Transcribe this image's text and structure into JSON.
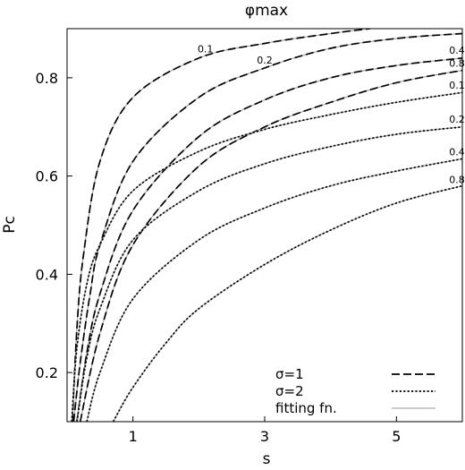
{
  "chart_data": {
    "type": "line",
    "title": "φmax",
    "xlabel": "s",
    "ylabel": "Pc",
    "xlim": [
      0,
      6
    ],
    "ylim": [
      0.1,
      0.9
    ],
    "xticks": [
      1,
      3,
      5
    ],
    "yticks": [
      0.2,
      0.4,
      0.6,
      0.8
    ],
    "legend": {
      "position": "bottom-right",
      "entries": [
        {
          "label": "σ=1",
          "style": "dashed"
        },
        {
          "label": "σ=2",
          "style": "dotted"
        },
        {
          "label": "fitting fn.",
          "style": "solid-thin"
        }
      ]
    },
    "series": [
      {
        "name": "0.1",
        "group": "σ=1",
        "style": "dashed",
        "x": [
          0.08,
          0.15,
          0.25,
          0.5,
          1.0,
          2.0,
          3.0,
          4.0,
          4.6
        ],
        "y": [
          0.1,
          0.29,
          0.44,
          0.63,
          0.76,
          0.84,
          0.87,
          0.89,
          0.9
        ]
      },
      {
        "name": "0.2",
        "group": "σ=1",
        "style": "dashed",
        "x": [
          0.1,
          0.2,
          0.35,
          0.5,
          1.0,
          2.0,
          3.0,
          4.0,
          5.0,
          6.0
        ],
        "y": [
          0.1,
          0.22,
          0.36,
          0.46,
          0.63,
          0.76,
          0.82,
          0.86,
          0.88,
          0.89
        ]
      },
      {
        "name": "0.4",
        "group": "σ=1",
        "style": "dashed",
        "x": [
          0.15,
          0.3,
          0.5,
          1.0,
          2.0,
          3.0,
          4.0,
          5.0,
          6.0
        ],
        "y": [
          0.1,
          0.24,
          0.36,
          0.53,
          0.68,
          0.755,
          0.8,
          0.825,
          0.84
        ]
      },
      {
        "name": "0.8",
        "group": "σ=1",
        "style": "dashed",
        "x": [
          0.2,
          0.5,
          1.0,
          2.0,
          3.0,
          4.0,
          5.0,
          6.0
        ],
        "y": [
          0.1,
          0.28,
          0.46,
          0.62,
          0.7,
          0.75,
          0.79,
          0.815
        ]
      },
      {
        "name": "0.1",
        "group": "σ=2",
        "style": "dotted",
        "x": [
          0.07,
          0.15,
          0.3,
          0.5,
          1.0,
          2.0,
          3.0,
          4.0,
          5.0,
          6.0
        ],
        "y": [
          0.1,
          0.25,
          0.38,
          0.46,
          0.57,
          0.65,
          0.695,
          0.725,
          0.75,
          0.77
        ]
      },
      {
        "name": "0.2",
        "group": "σ=2",
        "style": "dotted",
        "x": [
          0.15,
          0.3,
          0.5,
          1.0,
          2.0,
          3.0,
          4.0,
          5.0,
          6.0
        ],
        "y": [
          0.1,
          0.23,
          0.33,
          0.47,
          0.57,
          0.625,
          0.66,
          0.685,
          0.7
        ]
      },
      {
        "name": "0.4",
        "group": "σ=2",
        "style": "dotted",
        "x": [
          0.3,
          0.5,
          1.0,
          2.0,
          3.0,
          4.0,
          5.0,
          6.0
        ],
        "y": [
          0.1,
          0.2,
          0.35,
          0.47,
          0.535,
          0.58,
          0.61,
          0.635
        ]
      },
      {
        "name": "0.8",
        "group": "σ=2",
        "style": "dotted",
        "x": [
          0.7,
          1.0,
          1.5,
          2.0,
          3.0,
          4.0,
          5.0,
          6.0
        ],
        "y": [
          0.1,
          0.17,
          0.26,
          0.33,
          0.42,
          0.49,
          0.545,
          0.58
        ]
      }
    ]
  }
}
